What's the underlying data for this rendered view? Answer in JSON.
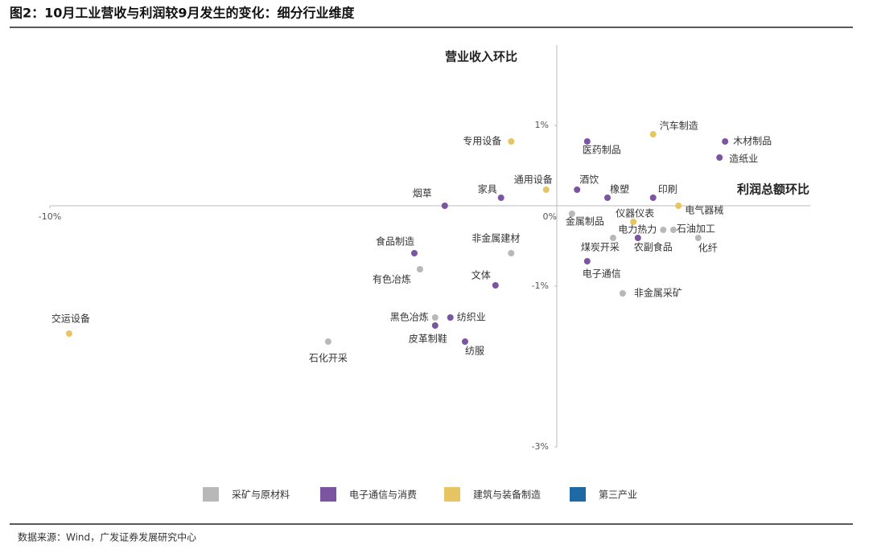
{
  "chart_data": {
    "type": "scatter",
    "title": "图2：10月工业营收与利润较9月发生的变化：细分行业维度",
    "x_label": "利润总额环比",
    "y_label": "营业收入环比",
    "source": "数据来源：Wind，广发证券发展研究中心",
    "xlim": [
      -10,
      5
    ],
    "ylim": [
      -3,
      2
    ],
    "xticks": [
      {
        "value": -10,
        "label": "-10%"
      },
      {
        "value": 0,
        "label": "0%"
      }
    ],
    "yticks": [
      {
        "value": 1,
        "label": "1%"
      },
      {
        "value": -1,
        "label": "-1%"
      },
      {
        "value": -3,
        "label": "-3%"
      }
    ],
    "series": [
      {
        "name": "采矿与原材料",
        "color": "#b8b8b8",
        "labels": [
          "金属制品",
          "煤炭开采",
          "电力热力",
          "石油加工",
          "化纤",
          "非金属建材",
          "有色冶炼",
          "非金属采矿",
          "黑色冶炼",
          "石化开采"
        ],
        "x": [
          0.3,
          1.11,
          2.1,
          2.3,
          2.79,
          -0.9,
          -2.7,
          1.3,
          -2.4,
          -4.51
        ],
        "values": [
          -0.1,
          -0.4,
          -0.3,
          -0.3,
          -0.4,
          -0.59,
          -0.79,
          -1.09,
          -1.39,
          -1.69
        ]
      },
      {
        "name": "电子通信与消费",
        "color": "#7b559f",
        "labels": [
          "医药制品",
          "木材制品",
          "造纸业",
          "酒饮",
          "橡塑",
          "印刷",
          "家具",
          "烟草",
          "农副食品",
          "电子通信",
          "食品制造",
          "文体",
          "纺织业",
          "皮革制鞋",
          "纺服"
        ],
        "x": [
          0.6,
          3.32,
          3.21,
          0.4,
          1.0,
          1.9,
          -1.1,
          -2.21,
          1.6,
          0.6,
          -2.81,
          -1.21,
          -2.1,
          -2.4,
          -1.81
        ],
        "values": [
          0.8,
          0.8,
          0.6,
          0.2,
          0.1,
          0.1,
          0.1,
          0.0,
          -0.4,
          -0.69,
          -0.59,
          -0.99,
          -1.39,
          -1.49,
          -1.69
        ]
      },
      {
        "name": "建筑与装备制造",
        "color": "#e6c562",
        "labels": [
          "专用设备",
          "汽车制造",
          "通用设备",
          "电气器械",
          "仪器仪表",
          "交运设备"
        ],
        "x": [
          -0.9,
          1.9,
          -0.21,
          2.4,
          1.51,
          -9.62
        ],
        "values": [
          0.8,
          0.89,
          0.2,
          0.0,
          -0.2,
          -1.59
        ]
      },
      {
        "name": "第三产业",
        "color": "#1f6aa5",
        "labels": [],
        "x": [],
        "values": []
      }
    ]
  }
}
